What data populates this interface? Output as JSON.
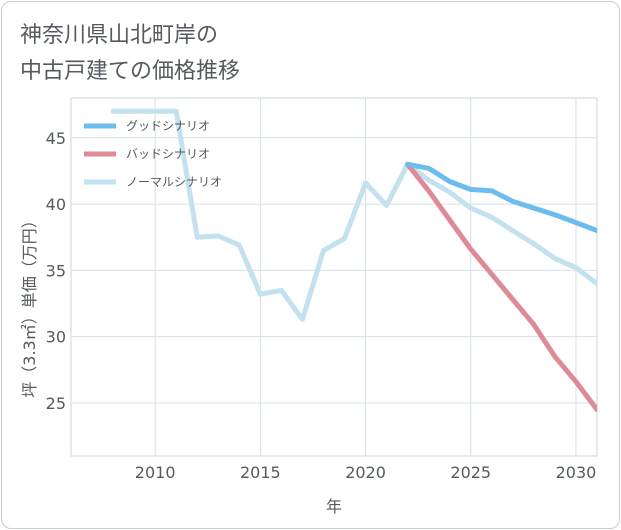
{
  "title_lines": [
    "神奈川県山北町岸の",
    "中古戸建ての価格推移"
  ],
  "chart_data": {
    "type": "line",
    "title": "神奈川県山北町岸の中古戸建ての価格推移",
    "xlabel": "年",
    "ylabel": "坪（3.3㎡）単価（万円）",
    "xlim": [
      2006,
      2031
    ],
    "ylim": [
      21,
      48
    ],
    "xticks": [
      2010,
      2015,
      2020,
      2025,
      2030
    ],
    "yticks": [
      25,
      30,
      35,
      40,
      45
    ],
    "grid": true,
    "legend_position": "top-left",
    "series": [
      {
        "name": "グッドシナリオ",
        "color": "#6cbcee",
        "x": [
          2022,
          2023,
          2024,
          2025,
          2026,
          2027,
          2028,
          2029,
          2030,
          2031
        ],
        "y": [
          43.0,
          42.7,
          41.7,
          41.1,
          41.0,
          40.2,
          39.7,
          39.2,
          38.6,
          38.0
        ]
      },
      {
        "name": "バッドシナリオ",
        "color": "#dd8b96",
        "x": [
          2022,
          2023,
          2024,
          2025,
          2026,
          2027,
          2028,
          2029,
          2030,
          2031
        ],
        "y": [
          43.0,
          41.0,
          38.8,
          36.6,
          34.7,
          32.8,
          30.9,
          28.5,
          26.6,
          24.5
        ]
      },
      {
        "name": "ノーマルシナリオ",
        "color": "#c4e1ef",
        "x": [
          2008,
          2009,
          2010,
          2011,
          2012,
          2013,
          2014,
          2015,
          2016,
          2017,
          2018,
          2019,
          2020,
          2021,
          2022,
          2023,
          2024,
          2025,
          2026,
          2027,
          2028,
          2029,
          2030,
          2031
        ],
        "y": [
          47.0,
          47.0,
          47.0,
          47.0,
          37.5,
          37.6,
          36.9,
          33.2,
          33.5,
          31.3,
          36.5,
          37.4,
          41.6,
          39.9,
          43.0,
          41.8,
          40.9,
          39.7,
          39.0,
          38.0,
          37.0,
          35.9,
          35.2,
          34.0
        ]
      }
    ]
  }
}
